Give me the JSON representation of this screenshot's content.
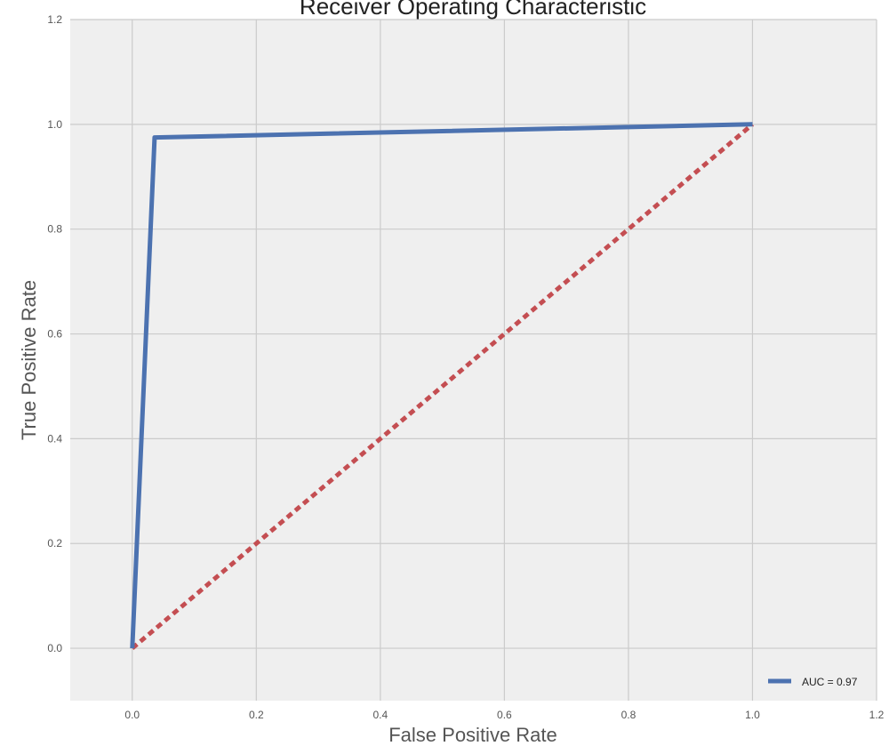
{
  "chart_data": {
    "type": "line",
    "title": "Receiver Operating Characteristic",
    "xlabel": "False Positive Rate",
    "ylabel": "True Positive Rate",
    "xlim": [
      -0.1,
      1.2
    ],
    "ylim": [
      -0.1,
      1.2
    ],
    "xticks": [
      "0.0",
      "0.2",
      "0.4",
      "0.6",
      "0.8",
      "1.0",
      "1.2"
    ],
    "yticks": [
      "0.0",
      "0.2",
      "0.4",
      "0.6",
      "0.8",
      "1.0",
      "1.2"
    ],
    "grid": true,
    "legend_position": "lower-right",
    "background_color": "#efefef",
    "grid_color": "#cbcbcb",
    "series": [
      {
        "name": "AUC = 0.97",
        "color": "#4c72b0",
        "style": "solid",
        "x": [
          0.0,
          0.036,
          1.0
        ],
        "y": [
          0.0,
          0.975,
          1.0
        ]
      },
      {
        "color": "#c44e52",
        "style": "dashed",
        "x": [
          0.0,
          1.0
        ],
        "y": [
          0.0,
          1.0
        ]
      }
    ]
  }
}
